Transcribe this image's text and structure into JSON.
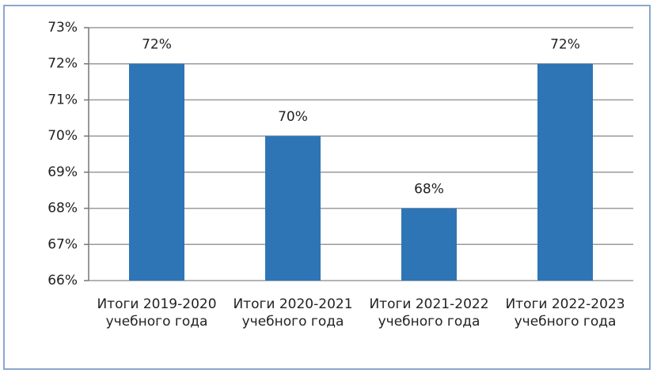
{
  "chart_data": {
    "type": "bar",
    "categories": [
      "Итоги 2019-2020 учебного года",
      "Итоги 2020-2021 учебного года",
      "Итоги 2021-2022 учебного года",
      "Итоги 2022-2023 учебного года"
    ],
    "values": [
      72,
      70,
      68,
      72
    ],
    "value_labels": [
      "72%",
      "70%",
      "68%",
      "72%"
    ],
    "color": "#2e75b6",
    "ylim": [
      66,
      73
    ],
    "yticks": [
      {
        "value": 66,
        "label": "66%"
      },
      {
        "value": 67,
        "label": "67%"
      },
      {
        "value": 68,
        "label": "68%"
      },
      {
        "value": 69,
        "label": "69%"
      },
      {
        "value": 70,
        "label": "70%"
      },
      {
        "value": 71,
        "label": "71%"
      },
      {
        "value": 72,
        "label": "72%"
      },
      {
        "value": 73,
        "label": "73%"
      }
    ],
    "grid": true
  }
}
